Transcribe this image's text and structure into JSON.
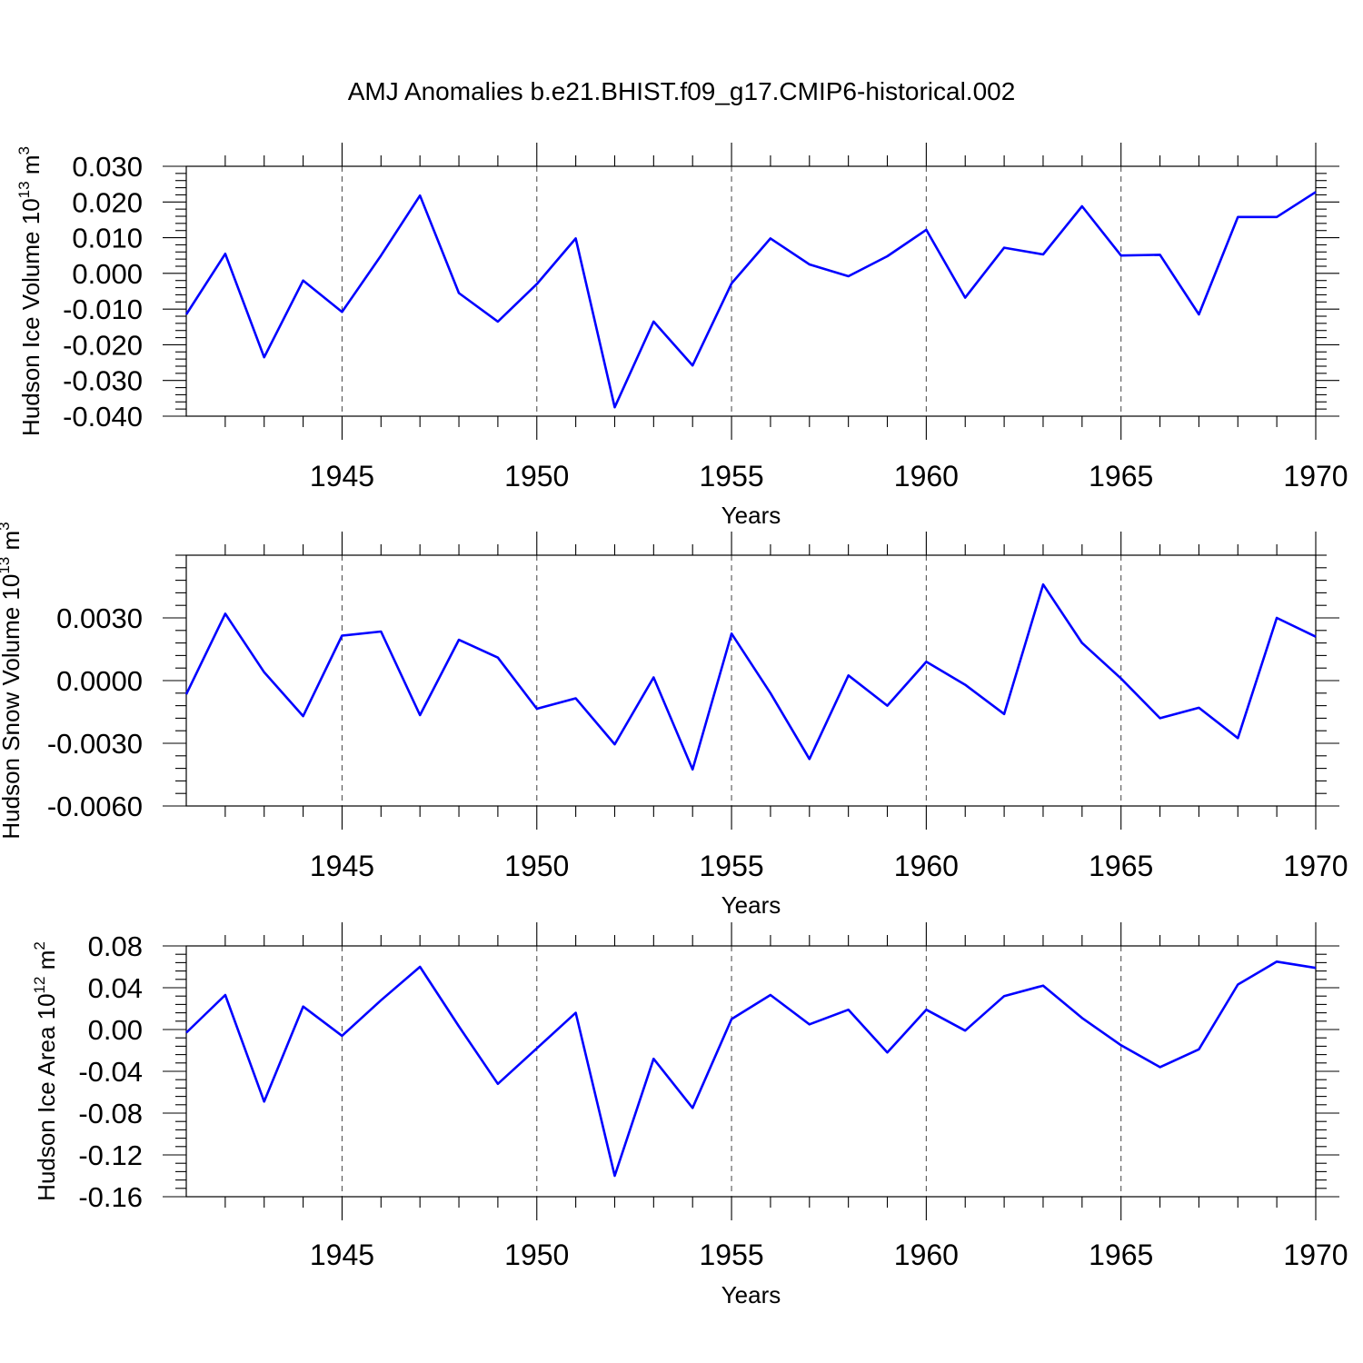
{
  "title": "AMJ Anomalies b.e21.BHIST.f09_g17.CMIP6-historical.002",
  "colors": {
    "line": "#0000ff",
    "axis": "#000000",
    "grid": "#555555"
  },
  "chart_data": [
    {
      "type": "line",
      "ylabel": "Hudson Ice Volume 10",
      "ylabel_exp": "13",
      "ylabel_unit": " m",
      "ylabel_unit_exp": "3",
      "xlabel": "Years",
      "xlim": [
        1941,
        1970
      ],
      "ylim": [
        -0.04,
        0.03
      ],
      "yticks": [
        0.03,
        0.02,
        0.01,
        0.0,
        -0.01,
        -0.02,
        -0.03,
        -0.04
      ],
      "ytick_labels": [
        "0.030",
        "0.020",
        "0.010",
        "0.000",
        "-0.010",
        "-0.020",
        "-0.030",
        "-0.040"
      ],
      "xticks": [
        1945,
        1950,
        1955,
        1960,
        1965,
        1970
      ],
      "xtick_labels": [
        "1945",
        "1950",
        "1955",
        "1960",
        "1965",
        "1970"
      ],
      "grid": "vertical dashed at major x ticks",
      "x": [
        1941,
        1942,
        1943,
        1944,
        1945,
        1946,
        1947,
        1948,
        1949,
        1950,
        1951,
        1952,
        1953,
        1954,
        1955,
        1956,
        1957,
        1958,
        1959,
        1960,
        1961,
        1962,
        1963,
        1964,
        1965,
        1966,
        1967,
        1968,
        1969,
        1970
      ],
      "values": [
        -0.0115,
        0.0055,
        -0.0235,
        -0.002,
        -0.0108,
        0.005,
        0.0218,
        -0.0055,
        -0.0135,
        -0.003,
        0.0098,
        -0.0375,
        -0.0135,
        -0.0258,
        -0.0028,
        0.0098,
        0.0025,
        -0.0008,
        0.0048,
        0.0122,
        -0.0068,
        0.0072,
        0.0053,
        0.0188,
        0.005,
        0.0052,
        -0.0115,
        0.0158,
        0.0158,
        0.0228
      ]
    },
    {
      "type": "line",
      "ylabel": "Hudson Snow Volume 10",
      "ylabel_exp": "13",
      "ylabel_unit": " m",
      "ylabel_unit_exp": "3",
      "xlabel": "Years",
      "xlim": [
        1941,
        1970
      ],
      "ylim": [
        -0.006,
        0.006
      ],
      "yticks": [
        0.003,
        0.0,
        -0.003,
        -0.006
      ],
      "ytick_labels": [
        "0.0030",
        "0.0000",
        "-0.0030",
        "-0.0060"
      ],
      "xticks": [
        1945,
        1950,
        1955,
        1960,
        1965,
        1970
      ],
      "xtick_labels": [
        "1945",
        "1950",
        "1955",
        "1960",
        "1965",
        "1970"
      ],
      "grid": "vertical dashed at major x ticks",
      "x": [
        1941,
        1942,
        1943,
        1944,
        1945,
        1946,
        1947,
        1948,
        1949,
        1950,
        1951,
        1952,
        1953,
        1954,
        1955,
        1956,
        1957,
        1958,
        1959,
        1960,
        1961,
        1962,
        1963,
        1964,
        1965,
        1966,
        1967,
        1968,
        1969,
        1970
      ],
      "values": [
        -0.00065,
        0.0032,
        0.0004,
        -0.0017,
        0.00215,
        0.00235,
        -0.00165,
        0.00195,
        0.0011,
        -0.00135,
        -0.00085,
        -0.00305,
        0.00015,
        -0.00425,
        0.00225,
        -0.0006,
        -0.00375,
        0.00025,
        -0.0012,
        0.0009,
        -0.0002,
        -0.0016,
        0.0046,
        0.0018,
        0.0001,
        -0.0018,
        -0.0013,
        -0.00275,
        0.003,
        0.0021
      ]
    },
    {
      "type": "line",
      "ylabel": "Hudson Ice Area 10",
      "ylabel_exp": "12",
      "ylabel_unit": " m",
      "ylabel_unit_exp": "2",
      "xlabel": "Years",
      "xlim": [
        1941,
        1970
      ],
      "ylim": [
        -0.16,
        0.08
      ],
      "yticks": [
        0.08,
        0.04,
        0.0,
        -0.04,
        -0.08,
        -0.12,
        -0.16
      ],
      "ytick_labels": [
        "0.08",
        "0.04",
        "0.00",
        "-0.04",
        "-0.08",
        "-0.12",
        "-0.16"
      ],
      "xticks": [
        1945,
        1950,
        1955,
        1960,
        1965,
        1970
      ],
      "xtick_labels": [
        "1945",
        "1950",
        "1955",
        "1960",
        "1965",
        "1970"
      ],
      "grid": "vertical dashed at major x ticks",
      "x": [
        1941,
        1942,
        1943,
        1944,
        1945,
        1946,
        1947,
        1948,
        1949,
        1950,
        1951,
        1952,
        1953,
        1954,
        1955,
        1956,
        1957,
        1958,
        1959,
        1960,
        1961,
        1962,
        1963,
        1964,
        1965,
        1966,
        1967,
        1968,
        1969,
        1970
      ],
      "values": [
        -0.003,
        0.033,
        -0.069,
        0.022,
        -0.006,
        0.028,
        0.06,
        0.003,
        -0.052,
        -0.018,
        0.016,
        -0.14,
        -0.028,
        -0.075,
        0.01,
        0.033,
        0.005,
        0.019,
        -0.022,
        0.019,
        -0.001,
        0.032,
        0.042,
        0.011,
        -0.015,
        -0.036,
        -0.019,
        0.043,
        0.065,
        0.059
      ]
    }
  ]
}
